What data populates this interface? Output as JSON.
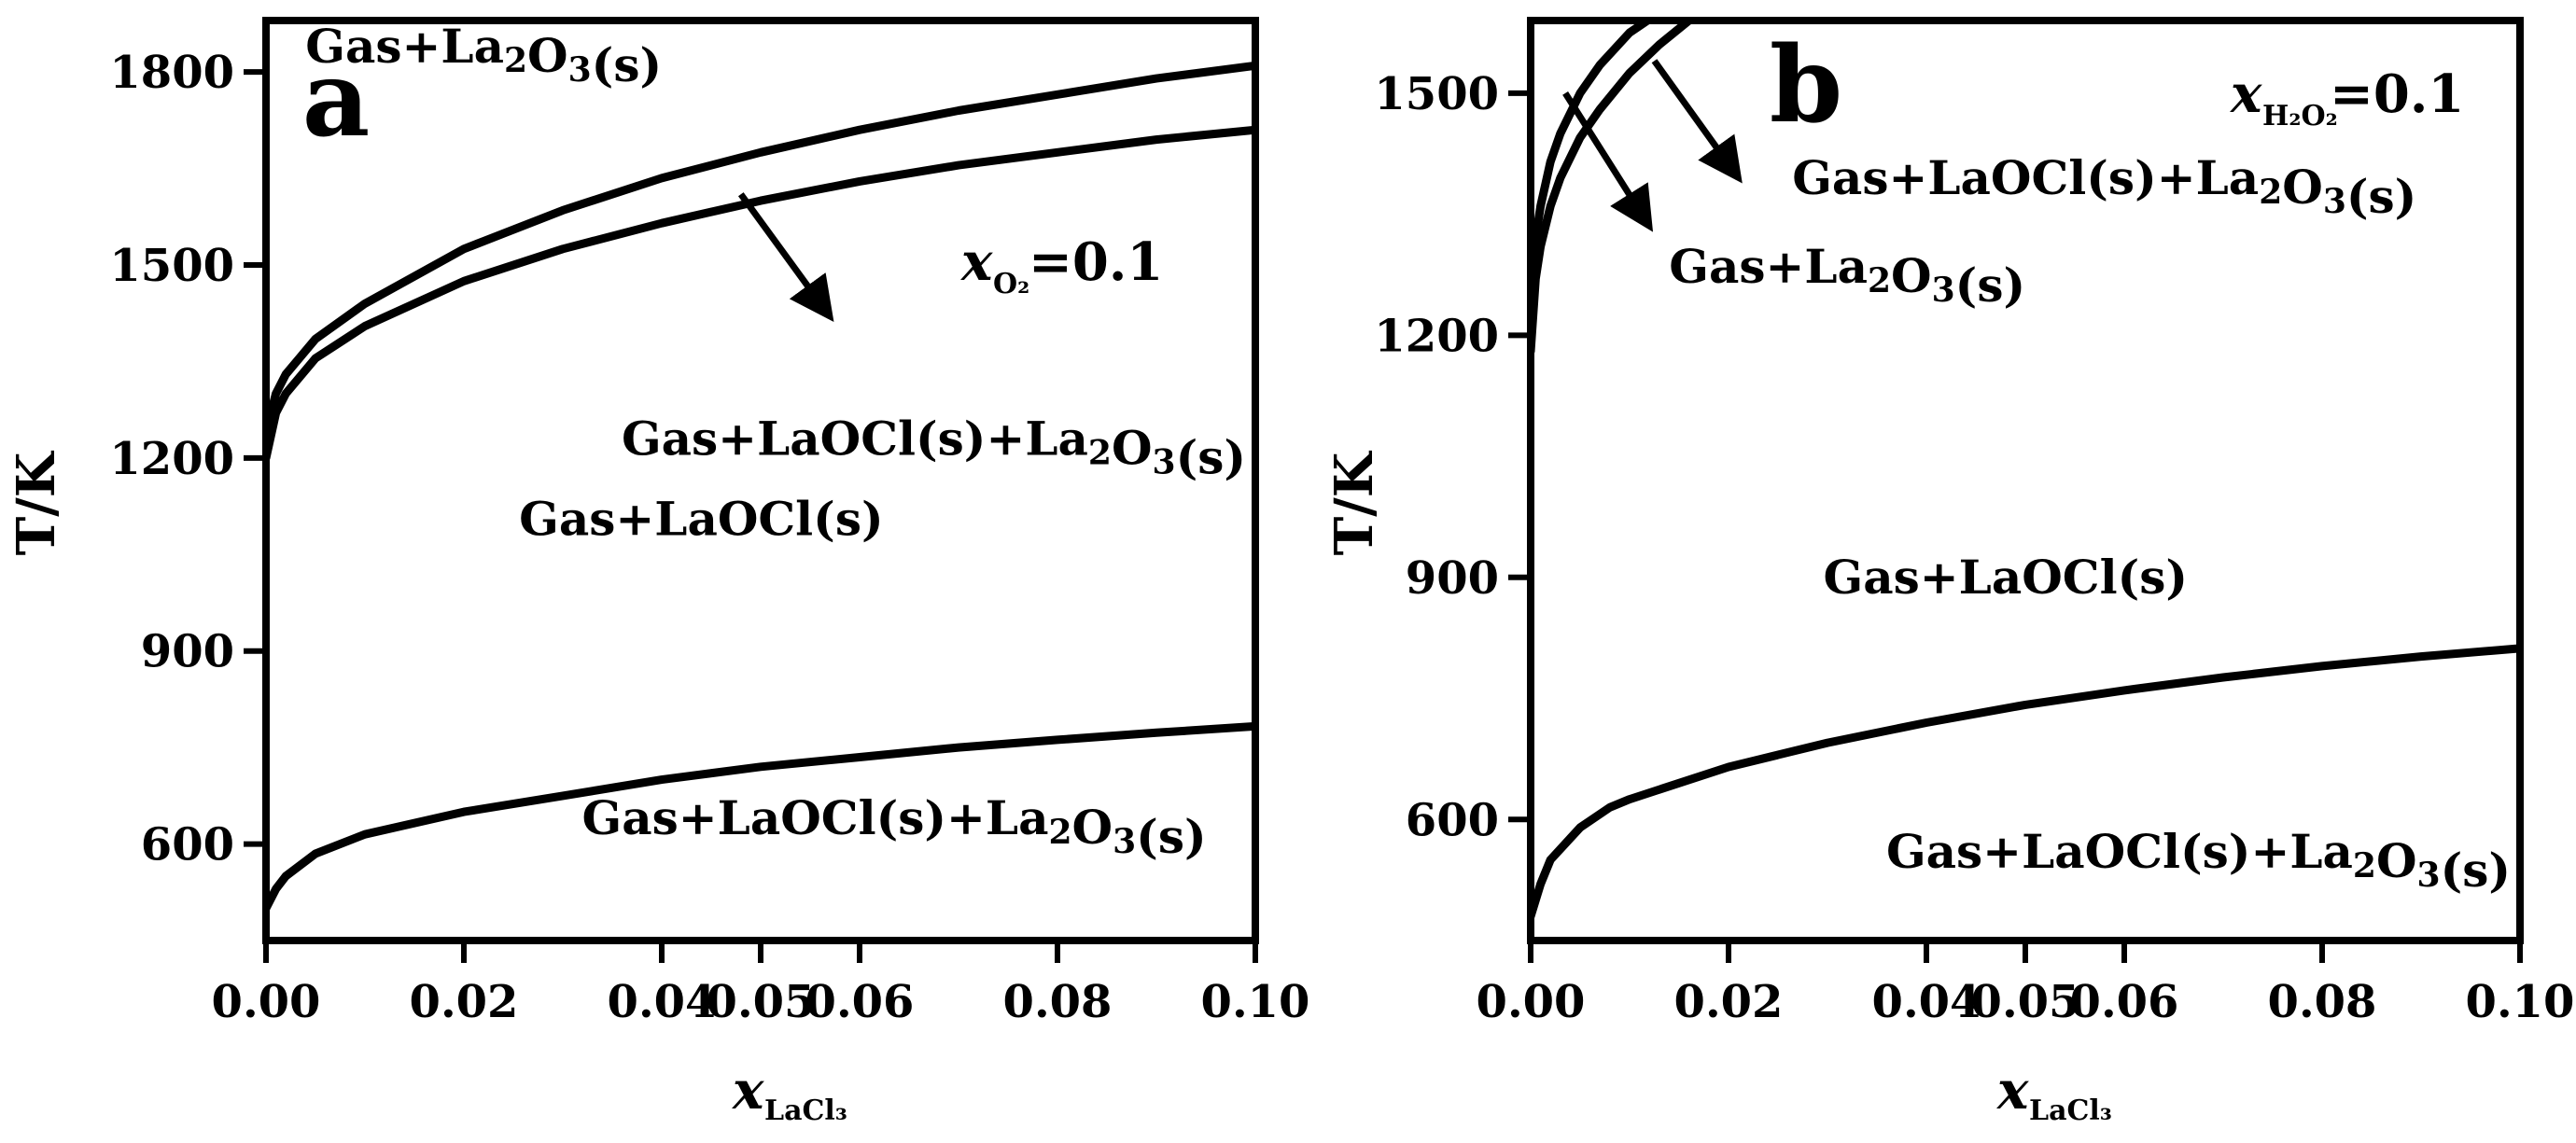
{
  "chart_data": [
    {
      "type": "line",
      "panel_label": "a",
      "xlabel": {
        "main": "x",
        "sub": "LaCl₃"
      },
      "ylabel": "T/K",
      "xlim": [
        0.0,
        0.1
      ],
      "ylim": [
        450,
        1880
      ],
      "x_ticks": [
        0.0,
        0.02,
        0.04,
        0.05,
        0.06,
        0.08,
        0.1
      ],
      "x_tick_labels": [
        "0.00",
        "0.02",
        "0.04",
        "0.05",
        "0.06",
        "0.08",
        "0.10"
      ],
      "y_ticks": [
        600,
        900,
        1200,
        1500,
        1800
      ],
      "y_tick_labels": [
        "600",
        "900",
        "1200",
        "1500",
        "1800"
      ],
      "grid": false,
      "legend": "none",
      "annotation": {
        "main": "x",
        "sub": "O₂",
        "value": " =0.1"
      },
      "series": [
        {
          "x": [
            0,
            0.001,
            0.002,
            0.005,
            0.01,
            0.02,
            0.03,
            0.04,
            0.05,
            0.06,
            0.07,
            0.08,
            0.09,
            0.1
          ],
          "values": [
            1240,
            1300,
            1330,
            1385,
            1440,
            1525,
            1585,
            1635,
            1675,
            1710,
            1740,
            1765,
            1790,
            1810
          ]
        },
        {
          "x": [
            0,
            0.001,
            0.002,
            0.005,
            0.01,
            0.02,
            0.03,
            0.04,
            0.05,
            0.06,
            0.07,
            0.08,
            0.09,
            0.1
          ],
          "values": [
            1200,
            1270,
            1300,
            1355,
            1405,
            1475,
            1525,
            1565,
            1600,
            1630,
            1655,
            1675,
            1695,
            1710
          ]
        },
        {
          "x": [
            0,
            0.001,
            0.002,
            0.005,
            0.01,
            0.02,
            0.03,
            0.04,
            0.05,
            0.06,
            0.07,
            0.08,
            0.09,
            0.1
          ],
          "values": [
            500,
            530,
            550,
            585,
            615,
            650,
            675,
            700,
            720,
            735,
            750,
            762,
            773,
            783
          ]
        }
      ],
      "arrows": [
        {
          "from": [
            0.048,
            1610
          ],
          "to": [
            0.057,
            1420
          ]
        }
      ],
      "regions": [
        {
          "text": "Gas+La₂O₃(s)",
          "x": 0.022,
          "y": 1815
        },
        {
          "text": "Gas+LaOCl(s)+La₂O₃(s)",
          "x": 0.0675,
          "y": 1205
        },
        {
          "text": "Gas+LaOCl(s)",
          "x": 0.044,
          "y": 1080
        },
        {
          "text": "Gas+LaOCl(s)+La₂O₃(s)",
          "x": 0.0635,
          "y": 615
        }
      ]
    },
    {
      "type": "line",
      "panel_label": "b",
      "xlabel": {
        "main": "x",
        "sub": "LaCl₃"
      },
      "ylabel": "T/K",
      "xlim": [
        0.0,
        0.1
      ],
      "ylim": [
        450,
        1590
      ],
      "x_ticks": [
        0.0,
        0.02,
        0.04,
        0.05,
        0.06,
        0.08,
        0.1
      ],
      "x_tick_labels": [
        "0.00",
        "0.02",
        "0.04",
        "0.05",
        "0.06",
        "0.08",
        "0.10"
      ],
      "y_ticks": [
        600,
        900,
        1200,
        1500
      ],
      "y_tick_labels": [
        "600",
        "900",
        "1200",
        "1500"
      ],
      "grid": false,
      "legend": "none",
      "annotation": {
        "main": "x",
        "sub": "H₂O₂",
        "value": "=0.1"
      },
      "series": [
        {
          "x": [
            0,
            0.0005,
            0.001,
            0.002,
            0.003,
            0.005,
            0.007,
            0.01,
            0.013
          ],
          "values": [
            1250,
            1320,
            1360,
            1415,
            1450,
            1500,
            1535,
            1575,
            1600
          ]
        },
        {
          "x": [
            0,
            0.0005,
            0.001,
            0.002,
            0.003,
            0.005,
            0.007,
            0.01,
            0.013,
            0.016
          ],
          "values": [
            1180,
            1270,
            1310,
            1360,
            1395,
            1445,
            1480,
            1525,
            1560,
            1590
          ]
        },
        {
          "x": [
            0,
            0.001,
            0.002,
            0.005,
            0.008,
            0.01,
            0.02,
            0.03,
            0.04,
            0.05,
            0.06,
            0.07,
            0.08,
            0.09,
            0.1
          ],
          "values": [
            480,
            520,
            550,
            590,
            615,
            625,
            665,
            695,
            720,
            742,
            760,
            776,
            790,
            802,
            812
          ]
        }
      ],
      "arrows": [
        {
          "from": [
            0.0125,
            1540
          ],
          "to": [
            0.021,
            1395
          ]
        },
        {
          "from": [
            0.0035,
            1500
          ],
          "to": [
            0.012,
            1335
          ]
        }
      ],
      "regions": [
        {
          "text": "Gas+LaOCl(s)+La₂O₃(s)",
          "x": 0.058,
          "y": 1375
        },
        {
          "text": "Gas+La₂O₃(s)",
          "x": 0.032,
          "y": 1265
        },
        {
          "text": "Gas+LaOCl(s)",
          "x": 0.048,
          "y": 880
        },
        {
          "text": "Gas+LaOCl(s)+La₂O₃(s)",
          "x": 0.0675,
          "y": 540
        }
      ]
    }
  ]
}
